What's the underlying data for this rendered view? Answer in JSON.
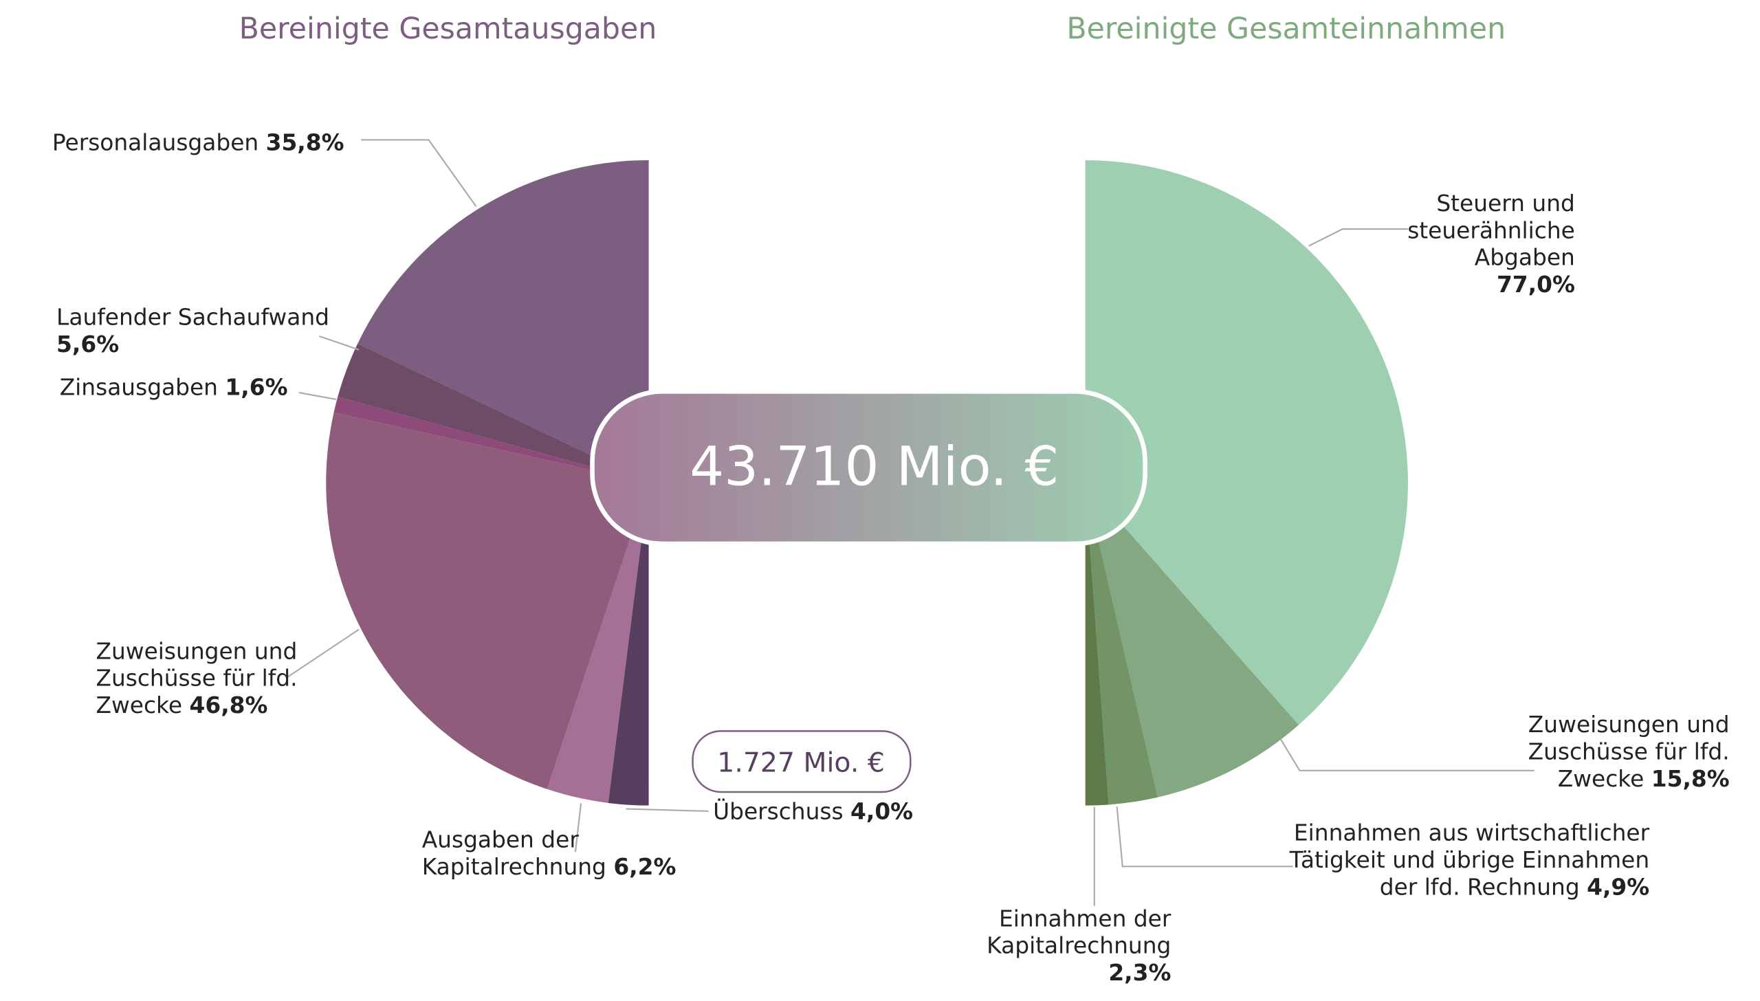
{
  "chart_data": [
    {
      "type": "pie",
      "title": "Bereinigte Gesamtausgaben",
      "title_color": "#7b5e80",
      "categories": [
        "Personalausgaben",
        "Laufender Sachaufwand",
        "Zinsausgaben",
        "Zuweisungen und\nZuschüsse für lfd.\nZwecke",
        "Ausgaben der\nKapitalrechnung",
        "Überschuss"
      ],
      "values": [
        35.8,
        5.6,
        1.6,
        46.8,
        6.2,
        4.0
      ],
      "value_labels": [
        "35,8%",
        "5,6%",
        "1,6%",
        "46,8%",
        "6,2%",
        "4,0%"
      ],
      "colors": [
        "#7b5e80",
        "#6e4c68",
        "#8e4a78",
        "#8f5c7b",
        "#a47096",
        "#573e5e"
      ]
    },
    {
      "type": "pie",
      "title": "Bereinigte Gesamteinnahmen",
      "title_color": "#7faa7f",
      "categories": [
        "Steuern und\nsteuerähnliche\nAbgaben",
        "Zuweisungen und\nZuschüsse für lfd.\nZwecke",
        "Einnahmen aus wirtschaftlicher\nTätigkeit und übrige Einnahmen\nder lfd. Rechnung",
        "Einnahmen der\nKapitalrechnung"
      ],
      "values": [
        77.0,
        15.8,
        4.9,
        2.3
      ],
      "value_labels": [
        "77,0%",
        "15,8%",
        "4,9%",
        "2,3%"
      ],
      "colors": [
        "#9ecfb1",
        "#84a882",
        "#739466",
        "#5e7a48"
      ]
    }
  ],
  "annotations": {
    "total": "43.710  Mio. €",
    "surplus": "1.727 Mio. €"
  }
}
